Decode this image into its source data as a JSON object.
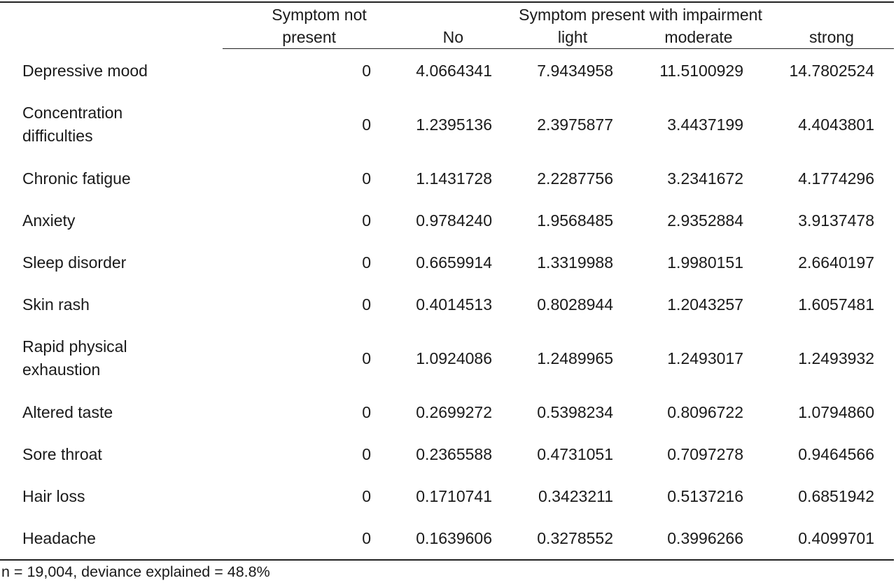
{
  "header": {
    "not_present_line1": "Symptom not",
    "not_present_line2": "present",
    "present_group": "Symptom present with impairment",
    "col_no": "No",
    "col_light": "light",
    "col_moderate": "moderate",
    "col_strong": "strong"
  },
  "rows": [
    {
      "label": "Depressive mood",
      "not_present": "0",
      "no": "4.0664341",
      "light": "7.9434958",
      "moderate": "11.5100929",
      "strong": "14.7802524"
    },
    {
      "label": "Concentration difficulties",
      "not_present": "0",
      "no": "1.2395136",
      "light": "2.3975877",
      "moderate": "3.4437199",
      "strong": "4.4043801"
    },
    {
      "label": "Chronic fatigue",
      "not_present": "0",
      "no": "1.1431728",
      "light": "2.2287756",
      "moderate": "3.2341672",
      "strong": "4.1774296"
    },
    {
      "label": "Anxiety",
      "not_present": "0",
      "no": "0.9784240",
      "light": "1.9568485",
      "moderate": "2.9352884",
      "strong": "3.9137478"
    },
    {
      "label": "Sleep disorder",
      "not_present": "0",
      "no": "0.6659914",
      "light": "1.3319988",
      "moderate": "1.9980151",
      "strong": "2.6640197"
    },
    {
      "label": "Skin rash",
      "not_present": "0",
      "no": "0.4014513",
      "light": "0.8028944",
      "moderate": "1.2043257",
      "strong": "1.6057481"
    },
    {
      "label": "Rapid physical exhaustion",
      "not_present": "0",
      "no": "1.0924086",
      "light": "1.2489965",
      "moderate": "1.2493017",
      "strong": "1.2493932"
    },
    {
      "label": "Altered taste",
      "not_present": "0",
      "no": "0.2699272",
      "light": "0.5398234",
      "moderate": "0.8096722",
      "strong": "1.0794860"
    },
    {
      "label": "Sore throat",
      "not_present": "0",
      "no": "0.2365588",
      "light": "0.4731051",
      "moderate": "0.7097278",
      "strong": "0.9464566"
    },
    {
      "label": "Hair loss",
      "not_present": "0",
      "no": "0.1710741",
      "light": "0.3423211",
      "moderate": "0.5137216",
      "strong": "0.6851942"
    },
    {
      "label": "Headache",
      "not_present": "0",
      "no": "0.1639606",
      "light": "0.3278552",
      "moderate": "0.3996266",
      "strong": "0.4099701"
    }
  ],
  "footnote": "n = 19,004, deviance explained = 48.8%"
}
